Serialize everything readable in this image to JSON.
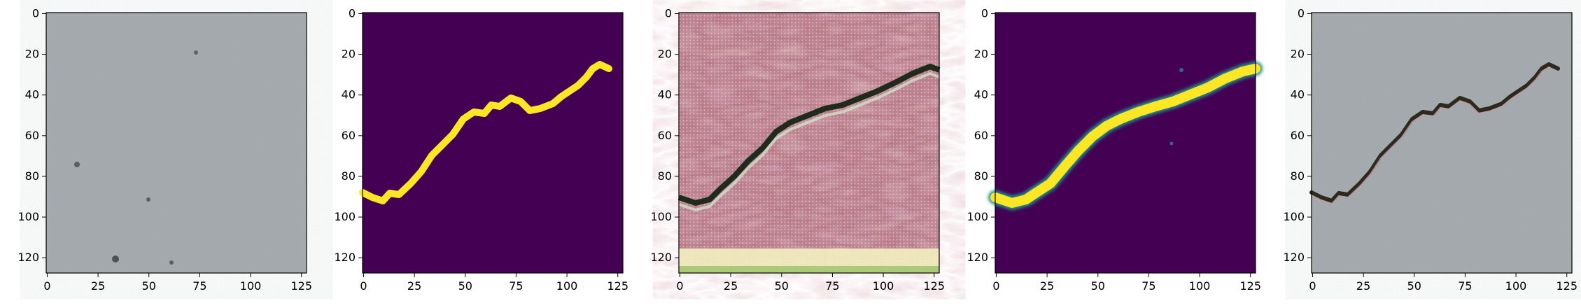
{
  "figure": {
    "panels": [
      {
        "id": "p1",
        "kind": "concrete-photo",
        "description": "concrete surface image"
      },
      {
        "id": "p2",
        "kind": "crack-mask",
        "description": "binary crack segmentation mask"
      },
      {
        "id": "p3",
        "kind": "generated-texture",
        "description": "generated crack texture with artifacts"
      },
      {
        "id": "p4",
        "kind": "predicted-mask",
        "description": "predicted crack mask"
      },
      {
        "id": "p5",
        "kind": "overlay",
        "description": "concrete image with crack overlay"
      }
    ],
    "x_ticks": [
      "0",
      "25",
      "50",
      "75",
      "100",
      "125"
    ],
    "y_ticks": [
      "0",
      "20",
      "40",
      "60",
      "80",
      "100",
      "120"
    ],
    "colors": {
      "mask_bg": "#440154",
      "mask_fg": "#fde725",
      "concrete": "#9aa0a3",
      "texture": "#c98a9a",
      "crack_dark": "#1f2b1c"
    }
  }
}
